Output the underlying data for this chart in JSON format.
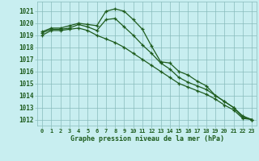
{
  "title": "Graphe pression niveau de la mer (hPa)",
  "background_color": "#c8eef0",
  "plot_bg_color": "#c8eef0",
  "grid_color": "#88bbbb",
  "line_color": "#1e5c1e",
  "ylim": [
    1011.5,
    1021.8
  ],
  "yticks": [
    1012,
    1013,
    1014,
    1015,
    1016,
    1017,
    1018,
    1019,
    1020,
    1021
  ],
  "series": [
    [
      1019.3,
      1019.6,
      1019.6,
      1019.8,
      1020.0,
      1019.9,
      1019.8,
      1021.0,
      1021.2,
      1021.0,
      1020.3,
      1019.5,
      1018.1,
      1016.8,
      1016.7,
      1016.0,
      1015.7,
      1015.2,
      1014.8,
      1014.0,
      1013.5,
      1013.0,
      1012.3,
      1012.0
    ],
    [
      1019.2,
      1019.5,
      1019.5,
      1019.6,
      1019.9,
      1019.7,
      1019.4,
      1020.3,
      1020.4,
      1019.7,
      1019.0,
      1018.2,
      1017.5,
      1016.7,
      1016.2,
      1015.5,
      1015.1,
      1014.8,
      1014.5,
      1014.0,
      1013.5,
      1013.0,
      1012.2,
      1012.0
    ],
    [
      1019.0,
      1019.4,
      1019.4,
      1019.5,
      1019.6,
      1019.4,
      1019.0,
      1018.7,
      1018.4,
      1018.0,
      1017.5,
      1017.0,
      1016.5,
      1016.0,
      1015.5,
      1015.0,
      1014.7,
      1014.4,
      1014.1,
      1013.7,
      1013.2,
      1012.8,
      1012.1,
      1012.0
    ]
  ]
}
